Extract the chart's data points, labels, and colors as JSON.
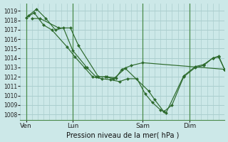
{
  "background_color": "#cce8e8",
  "grid_color": "#aacece",
  "line_color": "#2d6a2d",
  "marker_color": "#2d6a2d",
  "ylabel_values": [
    1008,
    1009,
    1010,
    1011,
    1012,
    1013,
    1014,
    1015,
    1016,
    1017,
    1018,
    1019
  ],
  "xlabel": "Pression niveau de la mer( hPa )",
  "xtick_labels": [
    "Ven",
    "Lun",
    "Sam",
    "Dim"
  ],
  "xtick_positions": [
    1,
    5,
    11,
    15
  ],
  "ylim": [
    1007.4,
    1019.8
  ],
  "xlim": [
    0.5,
    18.0
  ],
  "series": [
    [
      1018.3,
      1018.8,
      1017.5,
      1017.0,
      1015.2,
      1014.1,
      1013.0,
      1012.0,
      1011.8,
      1011.7,
      1011.5,
      1011.8,
      1011.8,
      1010.2,
      1009.3,
      1008.5,
      1008.2,
      1012.1,
      1013.1,
      1013.3,
      1014.0,
      1014.1,
      1012.8
    ],
    [
      1018.5,
      1019.2,
      1018.2,
      1017.0,
      1017.2,
      1014.8,
      1013.0,
      1012.0,
      1012.0,
      1011.8,
      1012.9,
      1010.5,
      1009.6,
      1008.3,
      1009.0,
      1012.0,
      1013.0,
      1013.2,
      1014.0,
      1014.2,
      1012.8
    ],
    [
      1018.2,
      1018.2,
      1017.2,
      1017.2,
      1015.3,
      1012.0,
      1012.0,
      1011.9,
      1012.8,
      1013.2,
      1013.5,
      1012.8
    ]
  ],
  "series_x": [
    [
      1.0,
      1.7,
      2.5,
      3.2,
      4.5,
      5.2,
      6.0,
      6.7,
      7.5,
      8.2,
      9.0,
      9.7,
      10.5,
      11.2,
      11.8,
      12.5,
      13.0,
      14.5,
      15.5,
      16.2,
      17.0,
      17.5,
      18.0
    ],
    [
      1.2,
      1.9,
      2.7,
      3.5,
      4.2,
      5.0,
      6.2,
      7.0,
      7.8,
      8.5,
      9.5,
      11.5,
      12.0,
      12.8,
      13.5,
      14.5,
      15.5,
      16.2,
      17.0,
      17.5,
      18.0
    ],
    [
      1.5,
      2.2,
      3.8,
      4.8,
      5.5,
      7.2,
      7.9,
      8.7,
      9.2,
      10.0,
      11.0,
      18.0
    ]
  ]
}
